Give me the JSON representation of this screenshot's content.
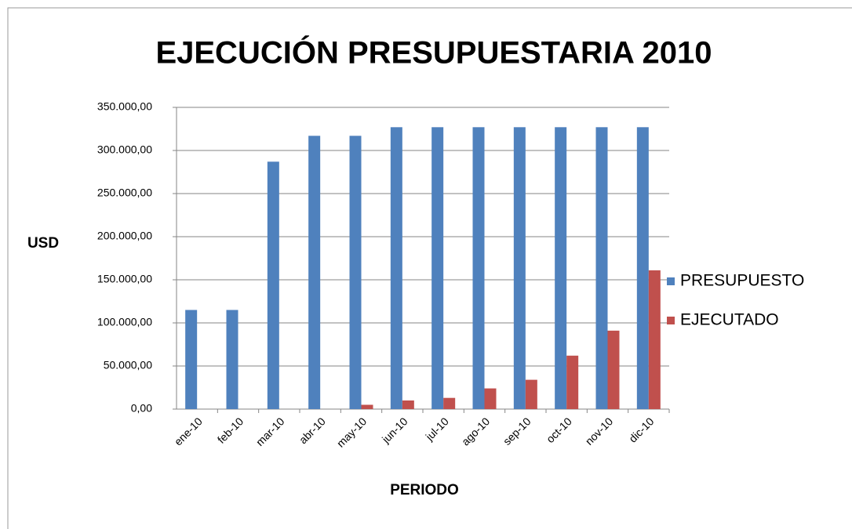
{
  "chart_data": {
    "type": "bar",
    "title": "EJECUCIÓN PRESUPUESTARIA 2010",
    "x_label": "PERIODO",
    "y_label": "USD",
    "categories": [
      "ene-10",
      "feb-10",
      "mar-10",
      "abr-10",
      "may-10",
      "jun-10",
      "jul-10",
      "ago-10",
      "sep-10",
      "oct-10",
      "nov-10",
      "dic-10"
    ],
    "series": [
      {
        "name": "PRESUPUESTO",
        "color": "#4f81bd",
        "values": [
          115000,
          115000,
          287000,
          317000,
          317000,
          327000,
          327000,
          327000,
          327000,
          327000,
          327000,
          327000
        ]
      },
      {
        "name": "EJECUTADO",
        "color": "#c0504d",
        "values": [
          0,
          0,
          0,
          0,
          5000,
          10000,
          13000,
          24000,
          34000,
          62000,
          91000,
          161000
        ]
      }
    ],
    "ylim": [
      0,
      350000
    ],
    "yticks": [
      {
        "value": 0,
        "label": "0,00"
      },
      {
        "value": 50000,
        "label": "50.000,00"
      },
      {
        "value": 100000,
        "label": "100.000,00"
      },
      {
        "value": 150000,
        "label": "150.000,00"
      },
      {
        "value": 200000,
        "label": "200.000,00"
      },
      {
        "value": 250000,
        "label": "250.000,00"
      },
      {
        "value": 300000,
        "label": "300.000,00"
      },
      {
        "value": 350000,
        "label": "350.000,00"
      }
    ],
    "grid": true,
    "legend": "right"
  }
}
